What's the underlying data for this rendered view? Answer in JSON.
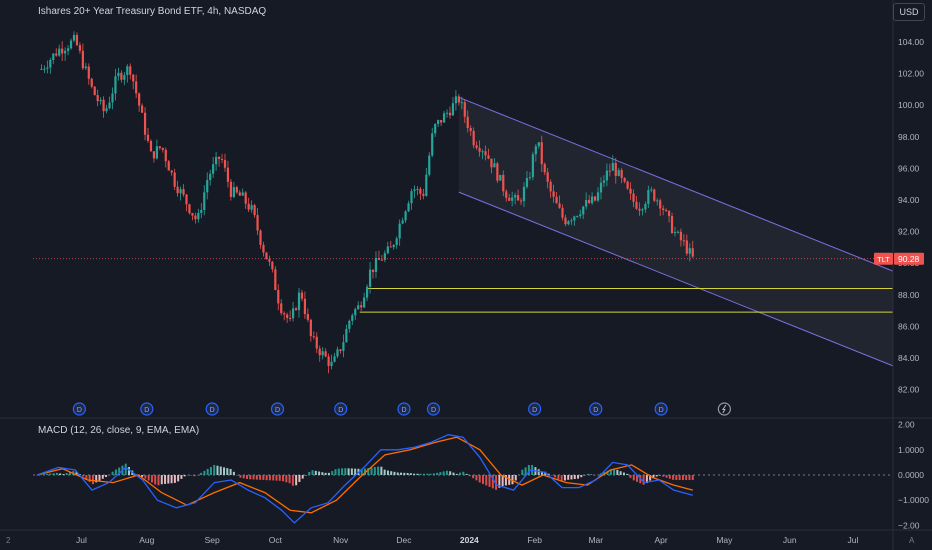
{
  "header": {
    "title": "Ishares 20+ Year Treasury Bond ETF, 4h, NASDAQ",
    "currency_label": "USD"
  },
  "macd_panel": {
    "title": "MACD (12, 26, close, 9, EMA, EMA)"
  },
  "corner": {
    "left": "2",
    "right": "A"
  },
  "price_badge": {
    "symbol": "TLT",
    "value": "90.28"
  },
  "dividend_marker_label": "D",
  "colors": {
    "background": "#161a25",
    "up": "#26a69a",
    "down": "#ef5350",
    "channel": "#7b6fe0",
    "support": "#d6d23a",
    "macd_line": "#2962ff",
    "signal_line": "#ff6d00",
    "price_line": "#ef5350"
  },
  "chart_data": [
    {
      "type": "candlestick",
      "title": "Ishares 20+ Year Treasury Bond ETF, 4h, NASDAQ",
      "x_tick_labels": [
        "Jul",
        "Aug",
        "Sep",
        "Oct",
        "Nov",
        "Dec",
        "2024",
        "Feb",
        "Mar",
        "Apr",
        "May",
        "Jun",
        "Jul"
      ],
      "y_tick_labels": [
        "104.00",
        "102.00",
        "100.00",
        "98.00",
        "96.00",
        "94.00",
        "92.00",
        "90.00",
        "88.00",
        "86.00",
        "84.00",
        "82.00"
      ],
      "ylim": [
        81.0,
        105.5
      ],
      "x_range": [
        "2023-06-08",
        "2024-07-20"
      ],
      "grid": false,
      "last_price": 90.28,
      "price_path": [
        [
          "2023-06-12",
          102.3
        ],
        [
          "2023-06-20",
          103.5
        ],
        [
          "2023-06-28",
          104.1
        ],
        [
          "2023-07-06",
          101.0
        ],
        [
          "2023-07-12",
          99.5
        ],
        [
          "2023-07-18",
          101.8
        ],
        [
          "2023-07-24",
          102.4
        ],
        [
          "2023-07-28",
          100.2
        ],
        [
          "2023-08-03",
          96.8
        ],
        [
          "2023-08-08",
          97.4
        ],
        [
          "2023-08-14",
          95.2
        ],
        [
          "2023-08-20",
          93.8
        ],
        [
          "2023-08-25",
          92.6
        ],
        [
          "2023-08-30",
          95.5
        ],
        [
          "2023-09-05",
          96.8
        ],
        [
          "2023-09-10",
          94.5
        ],
        [
          "2023-09-15",
          94.2
        ],
        [
          "2023-09-20",
          93.3
        ],
        [
          "2023-09-25",
          91.0
        ],
        [
          "2023-09-29",
          89.6
        ],
        [
          "2023-10-03",
          87.4
        ],
        [
          "2023-10-08",
          86.2
        ],
        [
          "2023-10-13",
          88.3
        ],
        [
          "2023-10-18",
          85.2
        ],
        [
          "2023-10-23",
          84.3
        ],
        [
          "2023-10-28",
          83.5
        ],
        [
          "2023-11-02",
          85.0
        ],
        [
          "2023-11-06",
          86.8
        ],
        [
          "2023-11-10",
          87.3
        ],
        [
          "2023-11-15",
          89.5
        ],
        [
          "2023-11-20",
          90.3
        ],
        [
          "2023-11-25",
          90.9
        ],
        [
          "2023-11-30",
          92.9
        ],
        [
          "2023-12-05",
          94.8
        ],
        [
          "2023-12-10",
          94.3
        ],
        [
          "2023-12-15",
          98.5
        ],
        [
          "2023-12-20",
          99.3
        ],
        [
          "2023-12-27",
          100.4
        ],
        [
          "2024-01-03",
          97.8
        ],
        [
          "2024-01-08",
          97.2
        ],
        [
          "2024-01-13",
          96.0
        ],
        [
          "2024-01-18",
          94.5
        ],
        [
          "2024-01-24",
          93.8
        ],
        [
          "2024-01-29",
          95.2
        ],
        [
          "2024-02-02",
          97.9
        ],
        [
          "2024-02-06",
          95.4
        ],
        [
          "2024-02-10",
          94.0
        ],
        [
          "2024-02-15",
          92.7
        ],
        [
          "2024-02-20",
          93.1
        ],
        [
          "2024-02-25",
          93.7
        ],
        [
          "2024-03-01",
          94.0
        ],
        [
          "2024-03-05",
          95.4
        ],
        [
          "2024-03-09",
          96.2
        ],
        [
          "2024-03-14",
          95.0
        ],
        [
          "2024-03-18",
          94.0
        ],
        [
          "2024-03-22",
          93.6
        ],
        [
          "2024-03-27",
          94.5
        ],
        [
          "2024-04-01",
          93.8
        ],
        [
          "2024-04-04",
          92.8
        ],
        [
          "2024-04-08",
          91.8
        ],
        [
          "2024-04-12",
          91.2
        ],
        [
          "2024-04-16",
          90.28
        ]
      ],
      "annotations": {
        "channel_upper": [
          [
            "2023-12-27",
            100.5
          ],
          [
            "2024-07-20",
            89.5
          ]
        ],
        "channel_lower": [
          [
            "2023-12-27",
            94.5
          ],
          [
            "2024-07-20",
            83.5
          ]
        ],
        "support_levels": [
          {
            "from": "2023-11-14",
            "value": 88.4
          },
          {
            "from": "2023-11-10",
            "value": 86.9
          }
        ],
        "last_price_line": 90.28,
        "dividend_dates": [
          "2023-06-30",
          "2023-08-01",
          "2023-09-01",
          "2023-10-02",
          "2023-11-01",
          "2023-12-01",
          "2023-12-15",
          "2024-02-01",
          "2024-03-01",
          "2024-04-01"
        ],
        "upcoming_dividend_date": "2024-05-01"
      }
    },
    {
      "type": "line",
      "title": "MACD (12, 26, close, 9, EMA, EMA)",
      "y_tick_labels": [
        "2.00",
        "1.0000",
        "0.0000",
        "−1.0000",
        "−2.00"
      ],
      "ylim": [
        -2.1,
        2.0
      ],
      "zero_line": 0,
      "series": [
        {
          "role": "macd",
          "values": [
            [
              "2023-06-10",
              0.0
            ],
            [
              "2023-06-20",
              0.3
            ],
            [
              "2023-06-28",
              0.2
            ],
            [
              "2023-07-06",
              -0.6
            ],
            [
              "2023-07-14",
              -0.3
            ],
            [
              "2023-07-22",
              0.3
            ],
            [
              "2023-07-30",
              -0.2
            ],
            [
              "2023-08-06",
              -1.0
            ],
            [
              "2023-08-15",
              -1.3
            ],
            [
              "2023-08-24",
              -1.1
            ],
            [
              "2023-09-02",
              -0.3
            ],
            [
              "2023-09-10",
              -0.2
            ],
            [
              "2023-09-18",
              -0.6
            ],
            [
              "2023-09-26",
              -0.9
            ],
            [
              "2023-10-04",
              -1.4
            ],
            [
              "2023-10-10",
              -1.9
            ],
            [
              "2023-10-18",
              -1.3
            ],
            [
              "2023-10-26",
              -1.1
            ],
            [
              "2023-11-03",
              -0.4
            ],
            [
              "2023-11-12",
              0.3
            ],
            [
              "2023-11-20",
              1.0
            ],
            [
              "2023-11-28",
              1.0
            ],
            [
              "2023-12-06",
              1.1
            ],
            [
              "2023-12-14",
              1.3
            ],
            [
              "2023-12-22",
              1.6
            ],
            [
              "2023-12-29",
              1.5
            ],
            [
              "2024-01-06",
              0.7
            ],
            [
              "2024-01-14",
              -0.4
            ],
            [
              "2024-01-22",
              -0.6
            ],
            [
              "2024-01-30",
              0.2
            ],
            [
              "2024-02-06",
              0.1
            ],
            [
              "2024-02-14",
              -0.5
            ],
            [
              "2024-02-22",
              -0.5
            ],
            [
              "2024-03-01",
              -0.2
            ],
            [
              "2024-03-09",
              0.5
            ],
            [
              "2024-03-16",
              0.4
            ],
            [
              "2024-03-24",
              -0.3
            ],
            [
              "2024-03-31",
              -0.2
            ],
            [
              "2024-04-07",
              -0.6
            ],
            [
              "2024-04-16",
              -0.8
            ]
          ]
        },
        {
          "role": "signal",
          "values": [
            [
              "2023-06-10",
              0.0
            ],
            [
              "2023-06-22",
              0.25
            ],
            [
              "2023-07-04",
              -0.2
            ],
            [
              "2023-07-16",
              -0.3
            ],
            [
              "2023-07-28",
              0.0
            ],
            [
              "2023-08-08",
              -0.7
            ],
            [
              "2023-08-20",
              -1.2
            ],
            [
              "2023-09-02",
              -0.7
            ],
            [
              "2023-09-14",
              -0.3
            ],
            [
              "2023-09-26",
              -0.7
            ],
            [
              "2023-10-08",
              -1.4
            ],
            [
              "2023-10-18",
              -1.5
            ],
            [
              "2023-10-30",
              -1.0
            ],
            [
              "2023-11-10",
              -0.1
            ],
            [
              "2023-11-22",
              0.8
            ],
            [
              "2023-12-04",
              1.0
            ],
            [
              "2023-12-16",
              1.3
            ],
            [
              "2023-12-26",
              1.5
            ],
            [
              "2024-01-06",
              1.0
            ],
            [
              "2024-01-16",
              0.0
            ],
            [
              "2024-01-26",
              -0.4
            ],
            [
              "2024-02-05",
              0.0
            ],
            [
              "2024-02-16",
              -0.3
            ],
            [
              "2024-02-26",
              -0.4
            ],
            [
              "2024-03-08",
              0.2
            ],
            [
              "2024-03-18",
              0.4
            ],
            [
              "2024-03-28",
              -0.1
            ],
            [
              "2024-04-07",
              -0.4
            ],
            [
              "2024-04-16",
              -0.6
            ]
          ]
        }
      ]
    }
  ]
}
